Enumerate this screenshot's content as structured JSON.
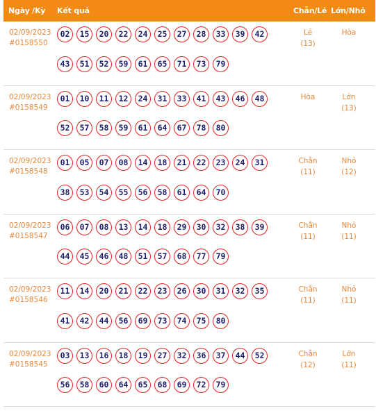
{
  "header": {
    "date_label": "Ngày /Kỳ",
    "result_label": "Kết quả",
    "even_odd_label": "Chẵn/Lẻ",
    "big_small_label": "Lớn/Nhỏ"
  },
  "rows": [
    {
      "date": "02/09/2023",
      "period": "#0158550",
      "numbers": [
        "02",
        "15",
        "20",
        "22",
        "24",
        "25",
        "27",
        "28",
        "33",
        "39",
        "42",
        "43",
        "51",
        "52",
        "59",
        "61",
        "65",
        "71",
        "73",
        "79"
      ],
      "even_odd": "Lẻ",
      "even_odd_count": "(13)",
      "big_small": "Hòa",
      "big_small_count": ""
    },
    {
      "date": "02/09/2023",
      "period": "#0158549",
      "numbers": [
        "01",
        "10",
        "11",
        "12",
        "24",
        "31",
        "33",
        "41",
        "43",
        "46",
        "48",
        "52",
        "57",
        "58",
        "59",
        "61",
        "64",
        "67",
        "78",
        "80"
      ],
      "even_odd": "Hòa",
      "even_odd_count": "",
      "big_small": "Lớn",
      "big_small_count": "(13)"
    },
    {
      "date": "02/09/2023",
      "period": "#0158548",
      "numbers": [
        "01",
        "05",
        "07",
        "08",
        "14",
        "18",
        "21",
        "22",
        "23",
        "24",
        "31",
        "38",
        "53",
        "54",
        "55",
        "56",
        "58",
        "61",
        "64",
        "70"
      ],
      "even_odd": "Chẵn",
      "even_odd_count": "(11)",
      "big_small": "Nhỏ",
      "big_small_count": "(12)"
    },
    {
      "date": "02/09/2023",
      "period": "#0158547",
      "numbers": [
        "06",
        "07",
        "08",
        "13",
        "14",
        "18",
        "29",
        "30",
        "32",
        "38",
        "39",
        "44",
        "45",
        "46",
        "48",
        "51",
        "57",
        "68",
        "77",
        "79"
      ],
      "even_odd": "Chẵn",
      "even_odd_count": "(11)",
      "big_small": "Nhỏ",
      "big_small_count": "(11)"
    },
    {
      "date": "02/09/2023",
      "period": "#0158546",
      "numbers": [
        "11",
        "14",
        "20",
        "21",
        "22",
        "23",
        "26",
        "30",
        "31",
        "32",
        "35",
        "41",
        "42",
        "44",
        "56",
        "69",
        "73",
        "74",
        "75",
        "80"
      ],
      "even_odd": "Chẵn",
      "even_odd_count": "(11)",
      "big_small": "Nhỏ",
      "big_small_count": "(11)"
    },
    {
      "date": "02/09/2023",
      "period": "#0158545",
      "numbers": [
        "03",
        "13",
        "16",
        "18",
        "19",
        "27",
        "32",
        "36",
        "37",
        "44",
        "52",
        "56",
        "58",
        "60",
        "64",
        "65",
        "68",
        "69",
        "72",
        "79"
      ],
      "even_odd": "Chẵn",
      "even_odd_count": "(12)",
      "big_small": "Lớn",
      "big_small_count": "(11)"
    }
  ],
  "colors": {
    "header_bg": "#f28a14",
    "accent_text": "#e8893a",
    "ball_border": "#e22222",
    "ball_text": "#1e1e6e"
  }
}
